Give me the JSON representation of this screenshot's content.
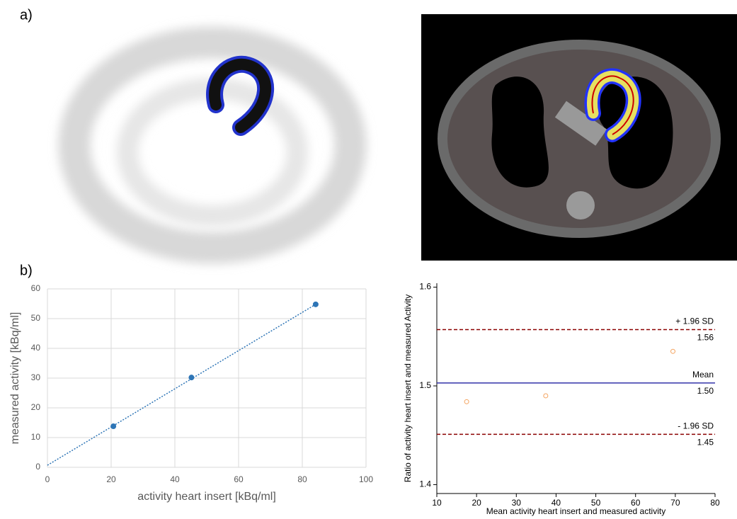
{
  "panel_labels": [
    "a)",
    "b)"
  ],
  "chart_data": [
    {
      "type": "scatter",
      "xlabel": "activity heart insert [kBq/ml]",
      "ylabel": "measured activity [kBq/ml]",
      "x": [
        20.7,
        45.2,
        84.2
      ],
      "series": [
        {
          "color": "#2e75b6",
          "values": [
            13.8,
            30.2,
            54.8
          ]
        }
      ],
      "trendline": {
        "x": [
          0,
          84.2
        ],
        "y": [
          0.7,
          54.8
        ],
        "color": "#2e75b6"
      },
      "xlim": [
        0,
        100
      ],
      "xticks": [
        0,
        20,
        40,
        60,
        80,
        100
      ],
      "ylim": [
        0,
        60
      ],
      "yticks": [
        0,
        10,
        20,
        30,
        40,
        50,
        60
      ],
      "grid": true
    },
    {
      "type": "scatter",
      "xlabel": "Mean activity heart insert and measured activity",
      "ylabel": "Ratio of activity heart insert and measured Activity",
      "x": [
        17.5,
        37.4,
        69.4
      ],
      "series": [
        {
          "color": "#f4a460",
          "values": [
            1.484,
            1.49,
            1.535
          ]
        }
      ],
      "hlines": [
        {
          "label": "+ 1.96 SD",
          "value": 1.557,
          "value_label": "1.56",
          "color": "#8b0000",
          "style": "dashed"
        },
        {
          "label": "Mean",
          "value": 1.503,
          "value_label": "1.50",
          "color": "#3333aa",
          "style": "solid"
        },
        {
          "label": "- 1.96 SD",
          "value": 1.451,
          "value_label": "1.45",
          "color": "#8b0000",
          "style": "dashed"
        }
      ],
      "xlim": [
        10,
        80
      ],
      "xticks": [
        10,
        20,
        30,
        40,
        50,
        60,
        70,
        80
      ],
      "ylim": [
        1.391,
        1.604
      ],
      "yticks": [
        1.4,
        1.5,
        1.6
      ],
      "grid": false
    }
  ]
}
